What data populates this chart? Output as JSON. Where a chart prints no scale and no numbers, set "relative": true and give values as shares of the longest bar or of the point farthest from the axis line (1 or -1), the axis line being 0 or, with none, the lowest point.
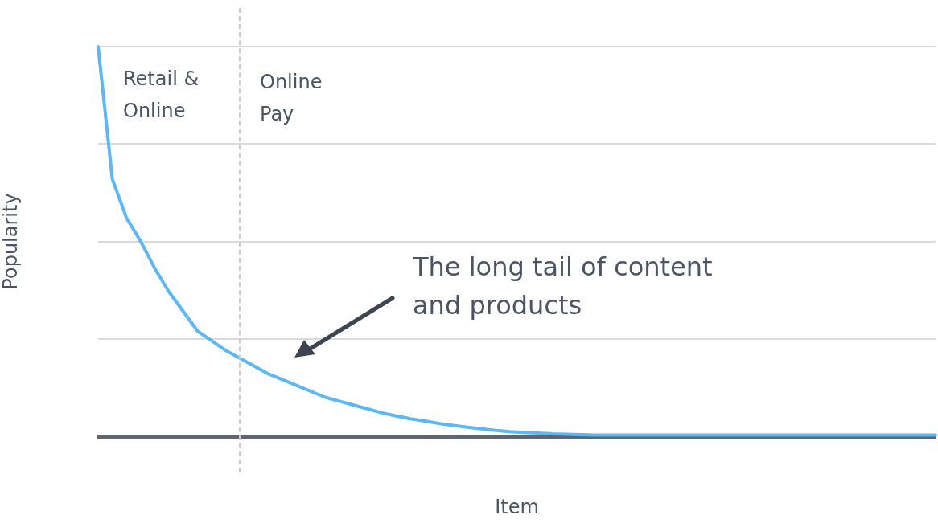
{
  "chart_data": {
    "type": "line",
    "relative": true,
    "xlabel": "Item",
    "ylabel": "Popularity",
    "categories": [
      null,
      null,
      null,
      null,
      null,
      null,
      null,
      null,
      null,
      null,
      null,
      null,
      null,
      null,
      null,
      null,
      null,
      null,
      null,
      null,
      null,
      null,
      null,
      null,
      null,
      null,
      null,
      null,
      null,
      null,
      null,
      null,
      null,
      null,
      null,
      null,
      null,
      null,
      null,
      null,
      null,
      null,
      null,
      null,
      null,
      null,
      null,
      null,
      null,
      null,
      null,
      null,
      null,
      null,
      null,
      null,
      null,
      null,
      null,
      null
    ],
    "series": [
      {
        "color": "#5bb8f5",
        "values": [
          1.0,
          0.66,
          0.56,
          0.5,
          0.43,
          0.37,
          0.32,
          0.27,
          0.245,
          0.22,
          0.2,
          0.18,
          0.16,
          0.145,
          0.13,
          0.115,
          0.1,
          0.09,
          0.08,
          0.07,
          0.06,
          0.052,
          0.045,
          0.039,
          0.033,
          0.028,
          0.023,
          0.019,
          0.015,
          0.012,
          0.01,
          0.008,
          0.006,
          0.005,
          0.004,
          0.003,
          0.003,
          0.003,
          0.003,
          0.003,
          0.003,
          0.003,
          0.003,
          0.003,
          0.003,
          0.003,
          0.003,
          0.003,
          0.003,
          0.003,
          0.003,
          0.003,
          0.003,
          0.003,
          0.003,
          0.003,
          0.003,
          0.003,
          0.003,
          0.003
        ]
      }
    ],
    "annotations": [
      "Retail & Online",
      "Online Pay",
      "The long tail of content and products"
    ],
    "grid": "y",
    "marker": "none",
    "line_style": "solid",
    "legend": false
  }
}
